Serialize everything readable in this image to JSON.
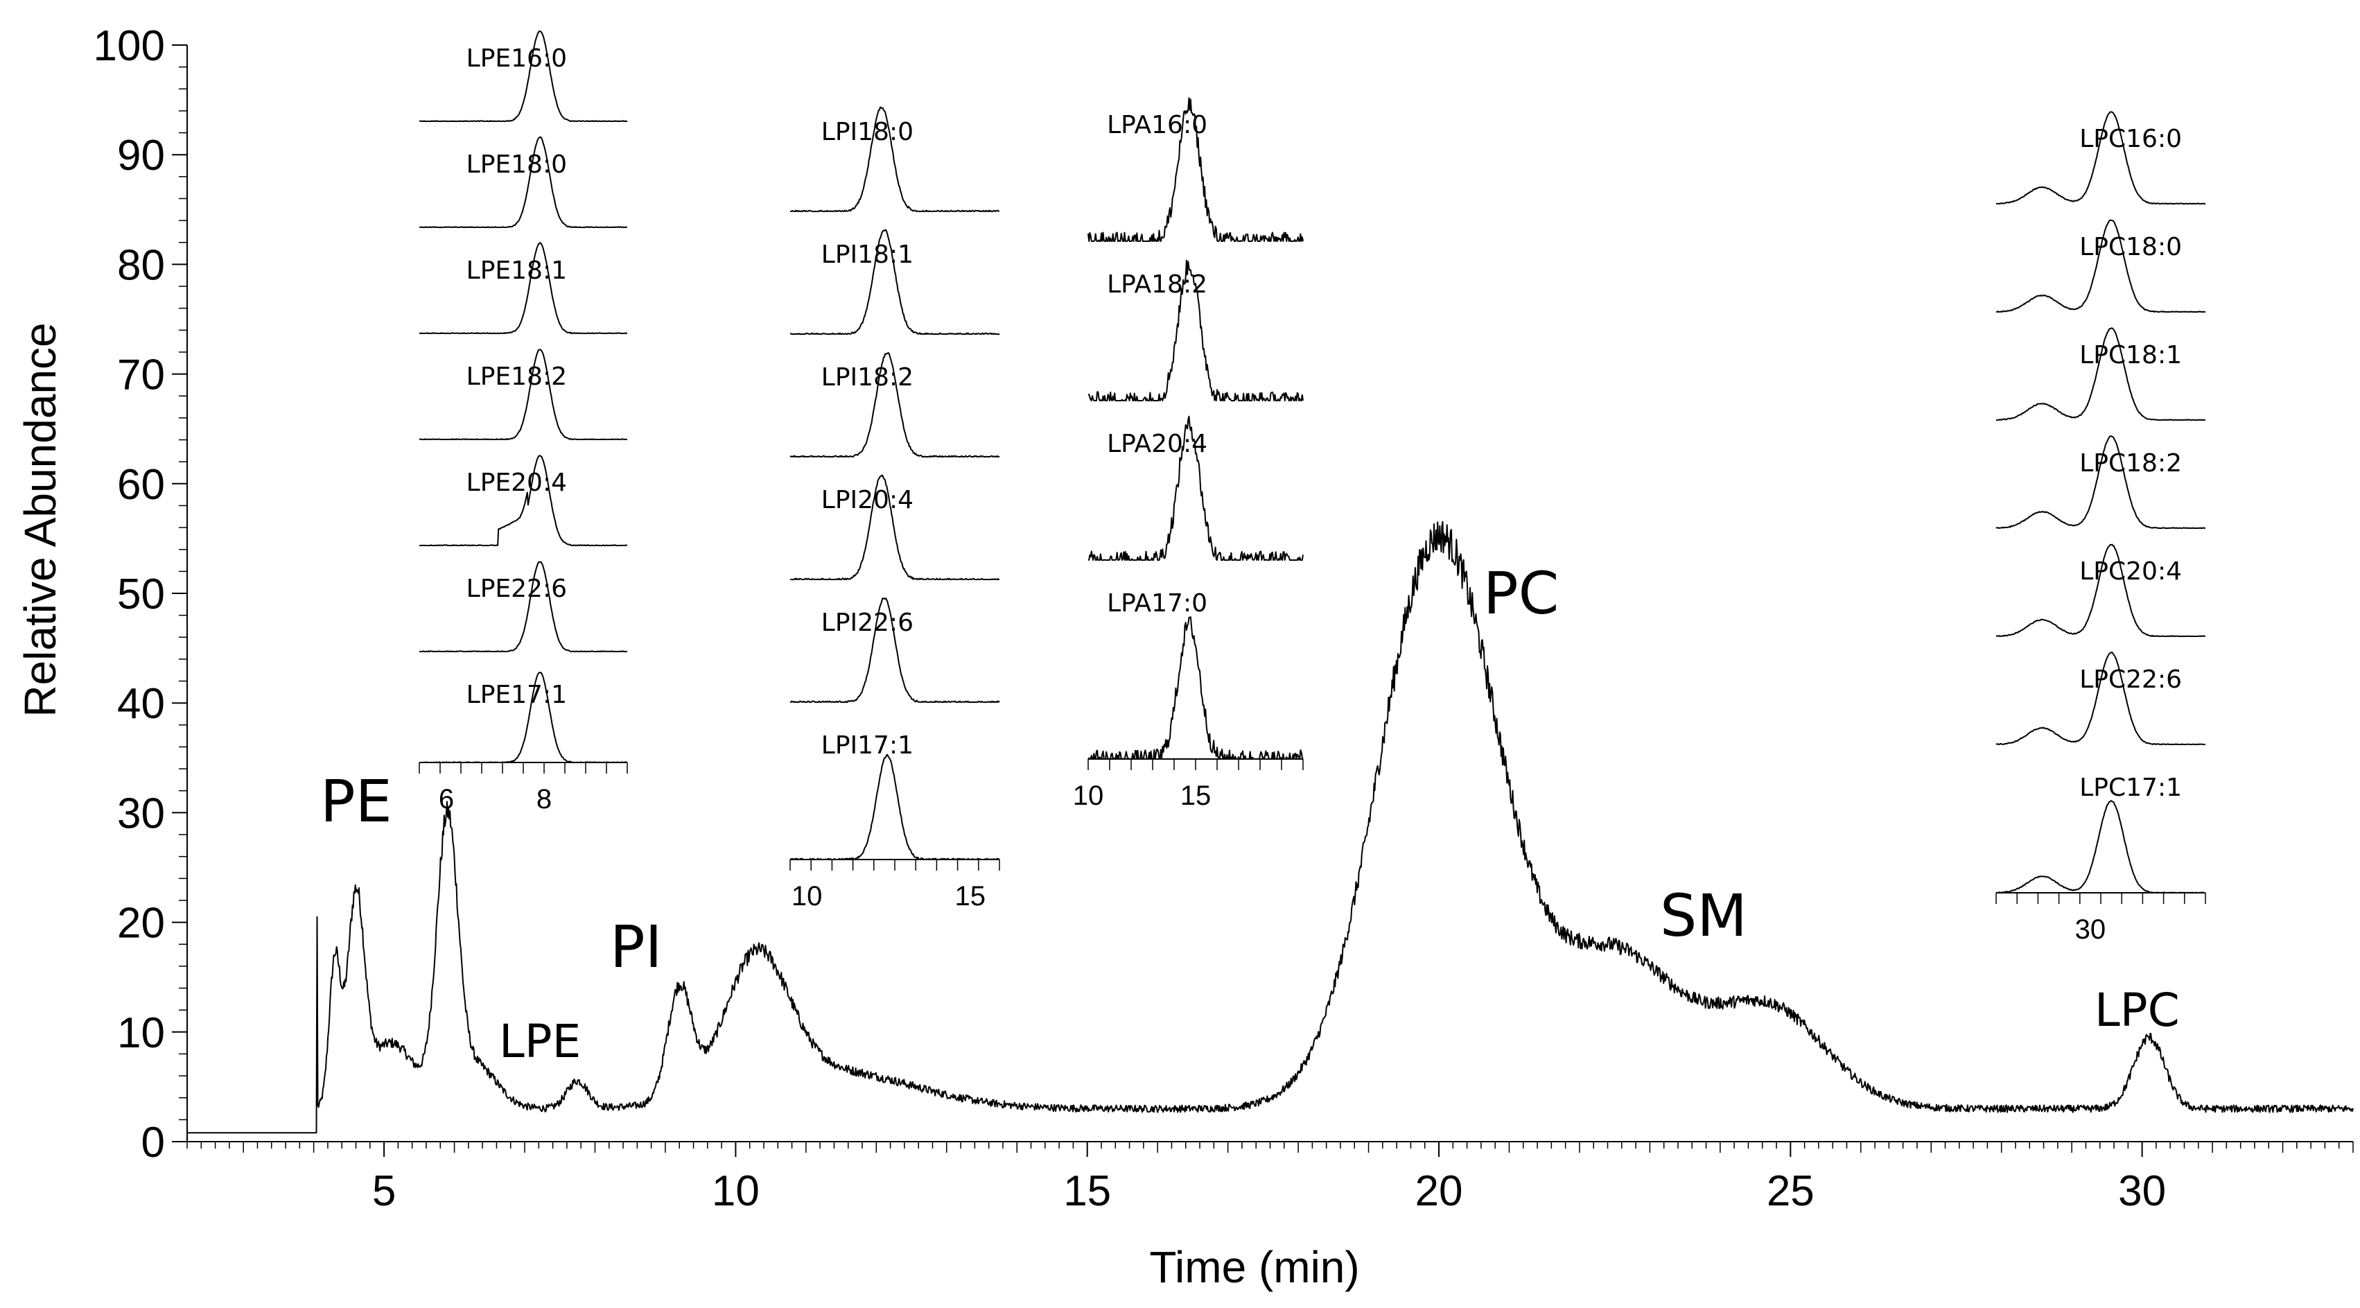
{
  "chart_data": {
    "type": "line",
    "title": "",
    "xlabel": "Time (min)",
    "ylabel": "Relative Abundance",
    "xlim": [
      2.2,
      33
    ],
    "ylim": [
      0,
      100
    ],
    "x_ticks": [
      5,
      10,
      15,
      20,
      25,
      30
    ],
    "x_tick_labels": [
      "5",
      "10",
      "15",
      "20",
      "25",
      "30"
    ],
    "y_ticks": [
      0,
      10,
      20,
      30,
      40,
      50,
      60,
      70,
      80,
      90,
      100
    ],
    "y_tick_labels": [
      "0",
      "10",
      "20",
      "30",
      "40",
      "50",
      "60",
      "70",
      "80",
      "90",
      "100"
    ],
    "baseline": 3,
    "peaks": [
      {
        "center": 4.3,
        "width": 0.08,
        "height": 13
      },
      {
        "center": 4.6,
        "width": 0.12,
        "height": 18
      },
      {
        "center": 5.1,
        "width": 0.35,
        "height": 6
      },
      {
        "center": 5.9,
        "width": 0.15,
        "height": 25
      },
      {
        "center": 6.3,
        "width": 0.3,
        "height": 4
      },
      {
        "center": 7.75,
        "width": 0.15,
        "height": 2.5
      },
      {
        "center": 9.2,
        "width": 0.17,
        "height": 10
      },
      {
        "center": 10.3,
        "width": 0.45,
        "height": 12
      },
      {
        "center": 11.3,
        "width": 1.2,
        "height": 3.5
      },
      {
        "center": 20.0,
        "width": 0.85,
        "height": 52
      },
      {
        "center": 22.5,
        "width": 0.9,
        "height": 14
      },
      {
        "center": 24.7,
        "width": 0.8,
        "height": 9
      },
      {
        "center": 30.1,
        "width": 0.22,
        "height": 6.5
      }
    ],
    "peak_labels": [
      "PE",
      "LPE",
      "PI",
      "PC",
      "SM",
      "LPC"
    ],
    "insets": [
      {
        "id": "LPE",
        "x_tick_labels": [
          "6",
          "8"
        ],
        "peak_pos": 0.58,
        "labels": [
          "LPE16:0",
          "LPE18:0",
          "LPE18:1",
          "LPE18:2",
          "LPE20:4",
          "LPE22:6",
          "LPE17:1"
        ]
      },
      {
        "id": "LPI",
        "x_tick_labels": [
          "10",
          "15"
        ],
        "peak_pos": 0.45,
        "labels": [
          "LPI18:0",
          "LPI18:1",
          "LPI18:2",
          "LPI20:4",
          "LPI22:6",
          "LPI17:1"
        ]
      },
      {
        "id": "LPA",
        "x_tick_labels": [
          "10",
          "15"
        ],
        "peak_pos": 0.47,
        "labels": [
          "LPA16:0",
          "LPA18:2",
          "LPA20:4",
          "LPA17:0"
        ]
      },
      {
        "id": "LPC",
        "x_tick_labels": [
          "30"
        ],
        "peak_pos": 0.55,
        "labels": [
          "LPC16:0",
          "LPC18:0",
          "LPC18:1",
          "LPC18:2",
          "LPC20:4",
          "LPC22:6",
          "LPC17:1"
        ]
      }
    ]
  }
}
